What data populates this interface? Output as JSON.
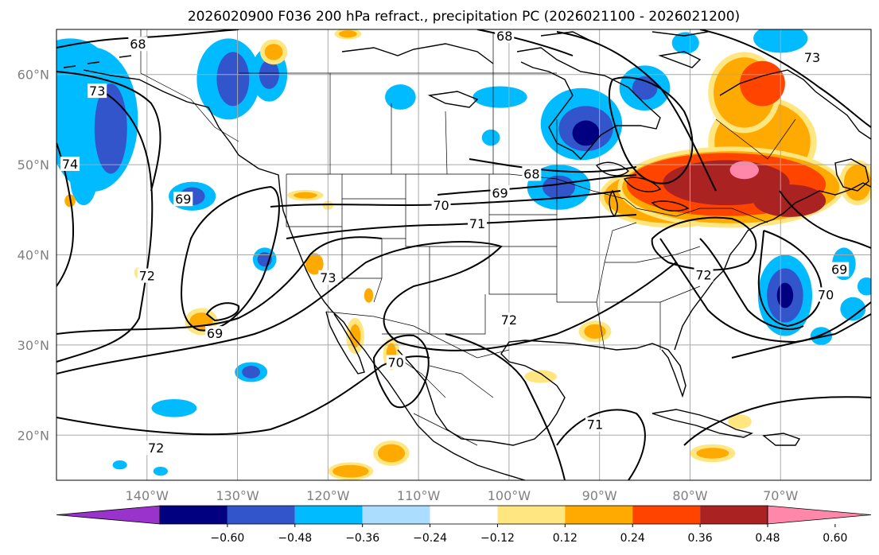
{
  "chart_data": {
    "type": "heatmap",
    "title": "2026020900 F036 200 hPa refract., precipitation PC (2026021100 - 2026021200)",
    "lon_range": [
      -150,
      -60
    ],
    "lat_range": [
      15,
      65
    ],
    "grid": true,
    "lat_ticks": [
      {
        "value": 20,
        "label": "20°N"
      },
      {
        "value": 30,
        "label": "30°N"
      },
      {
        "value": 40,
        "label": "40°N"
      },
      {
        "value": 50,
        "label": "50°N"
      },
      {
        "value": 60,
        "label": "60°N"
      }
    ],
    "lon_ticks": [
      {
        "value": -140,
        "label": "140°W"
      },
      {
        "value": -130,
        "label": "130°W"
      },
      {
        "value": -120,
        "label": "120°W"
      },
      {
        "value": -110,
        "label": "110°W"
      },
      {
        "value": -100,
        "label": "100°W"
      },
      {
        "value": -90,
        "label": "90°W"
      },
      {
        "value": -80,
        "label": "80°W"
      },
      {
        "value": -70,
        "label": "70°W"
      }
    ],
    "colorbar": {
      "colors": [
        "#9933cc",
        "#000080",
        "#3355cc",
        "#00bbff",
        "#aaddff",
        "#ffffff",
        "#ffe680",
        "#ffaa00",
        "#ff4400",
        "#aa2222",
        "#ff88aa"
      ],
      "ticks": [
        "−0.60",
        "−0.48",
        "−0.36",
        "−0.24",
        "−0.12",
        "0.12",
        "0.24",
        "0.36",
        "0.48",
        "0.60"
      ],
      "extend": "both"
    },
    "contour_labels": [
      {
        "lon": -141,
        "lat": 63.4,
        "text": "68"
      },
      {
        "lon": -100.5,
        "lat": 64.3,
        "text": "68"
      },
      {
        "lon": -66.5,
        "lat": 61.9,
        "text": "73"
      },
      {
        "lon": -145.5,
        "lat": 58.2,
        "text": "73"
      },
      {
        "lon": -148.5,
        "lat": 50.1,
        "text": "74"
      },
      {
        "lon": -136,
        "lat": 46.2,
        "text": "69"
      },
      {
        "lon": -97.5,
        "lat": 49.0,
        "text": "68"
      },
      {
        "lon": -101,
        "lat": 46.9,
        "text": "69"
      },
      {
        "lon": -107.5,
        "lat": 45.5,
        "text": "70"
      },
      {
        "lon": -103.5,
        "lat": 43.5,
        "text": "71"
      },
      {
        "lon": -140,
        "lat": 37.7,
        "text": "72"
      },
      {
        "lon": -120,
        "lat": 37.5,
        "text": "73"
      },
      {
        "lon": -100,
        "lat": 32.8,
        "text": "72"
      },
      {
        "lon": -78.5,
        "lat": 37.8,
        "text": "72"
      },
      {
        "lon": -65,
        "lat": 35.6,
        "text": "70"
      },
      {
        "lon": -63.5,
        "lat": 38.4,
        "text": "69"
      },
      {
        "lon": -132.5,
        "lat": 31.3,
        "text": "69"
      },
      {
        "lon": -112.5,
        "lat": 28.1,
        "text": "70"
      },
      {
        "lon": -139,
        "lat": 18.6,
        "text": "72"
      },
      {
        "lon": -90.5,
        "lat": 21.2,
        "text": "71"
      }
    ],
    "precip_areas": [
      {
        "lon": -146,
        "lat": 55,
        "rx": 5,
        "ry": 8,
        "color": "#00bbff"
      },
      {
        "lon": -144,
        "lat": 54,
        "rx": 1.8,
        "ry": 5,
        "color": "#3355cc"
      },
      {
        "lon": -148.5,
        "lat": 61,
        "rx": 4,
        "ry": 3,
        "color": "#00bbff"
      },
      {
        "lon": -147,
        "lat": 48.5,
        "rx": 1.5,
        "ry": 3,
        "color": "#00bbff"
      },
      {
        "lon": -131,
        "lat": 59.5,
        "rx": 3.5,
        "ry": 4.5,
        "color": "#00bbff"
      },
      {
        "lon": -130.5,
        "lat": 59.5,
        "rx": 1.8,
        "ry": 3,
        "color": "#3355cc"
      },
      {
        "lon": -126.5,
        "lat": 60,
        "rx": 2,
        "ry": 3,
        "color": "#00bbff"
      },
      {
        "lon": -126.5,
        "lat": 60,
        "rx": 1.1,
        "ry": 1.6,
        "color": "#3355cc"
      },
      {
        "lon": -135,
        "lat": 46.5,
        "rx": 2.6,
        "ry": 1.6,
        "color": "#00bbff"
      },
      {
        "lon": -135,
        "lat": 46.5,
        "rx": 1.4,
        "ry": 1,
        "color": "#3355cc"
      },
      {
        "lon": -127,
        "lat": 39.5,
        "rx": 1.3,
        "ry": 1.3,
        "color": "#00bbff"
      },
      {
        "lon": -127,
        "lat": 39.5,
        "rx": 0.8,
        "ry": 0.8,
        "color": "#3355cc"
      },
      {
        "lon": -128.5,
        "lat": 27,
        "rx": 1.8,
        "ry": 1.1,
        "color": "#00bbff"
      },
      {
        "lon": -128.5,
        "lat": 27,
        "rx": 1,
        "ry": 0.7,
        "color": "#3355cc"
      },
      {
        "lon": -137,
        "lat": 23,
        "rx": 2.5,
        "ry": 1,
        "color": "#00bbff"
      },
      {
        "lon": -143,
        "lat": 16.7,
        "rx": 0.8,
        "ry": 0.5,
        "color": "#00bbff"
      },
      {
        "lon": -138.5,
        "lat": 16,
        "rx": 0.8,
        "ry": 0.5,
        "color": "#00bbff"
      },
      {
        "lon": -92,
        "lat": 54.5,
        "rx": 4.5,
        "ry": 4,
        "color": "#00bbff"
      },
      {
        "lon": -91.5,
        "lat": 54,
        "rx": 3,
        "ry": 2.5,
        "color": "#3355cc"
      },
      {
        "lon": -91.5,
        "lat": 53.5,
        "rx": 1.5,
        "ry": 1.4,
        "color": "#000080"
      },
      {
        "lon": -85,
        "lat": 58.5,
        "rx": 2.8,
        "ry": 2.5,
        "color": "#00bbff"
      },
      {
        "lon": -85,
        "lat": 58.5,
        "rx": 1.4,
        "ry": 1.3,
        "color": "#3355cc"
      },
      {
        "lon": -94.5,
        "lat": 47.5,
        "rx": 3.5,
        "ry": 2.5,
        "color": "#00bbff"
      },
      {
        "lon": -94.5,
        "lat": 47.5,
        "rx": 1.8,
        "ry": 1.3,
        "color": "#3355cc"
      },
      {
        "lon": -101,
        "lat": 57.5,
        "rx": 3,
        "ry": 1.2,
        "color": "#00bbff"
      },
      {
        "lon": -112,
        "lat": 57.5,
        "rx": 1.7,
        "ry": 1.4,
        "color": "#00bbff"
      },
      {
        "lon": -102,
        "lat": 53,
        "rx": 1,
        "ry": 0.9,
        "color": "#00bbff"
      },
      {
        "lon": -78,
        "lat": 47.5,
        "rx": 2,
        "ry": 1.8,
        "color": "#00bbff"
      },
      {
        "lon": -69.5,
        "lat": 35.5,
        "rx": 3,
        "ry": 4.5,
        "color": "#00bbff"
      },
      {
        "lon": -69.5,
        "lat": 35.5,
        "rx": 2,
        "ry": 3,
        "color": "#3355cc"
      },
      {
        "lon": -69.5,
        "lat": 35.5,
        "rx": 0.9,
        "ry": 1.4,
        "color": "#000080"
      },
      {
        "lon": -63,
        "lat": 39,
        "rx": 1.3,
        "ry": 1.8,
        "color": "#00bbff"
      },
      {
        "lon": -62,
        "lat": 34,
        "rx": 1.4,
        "ry": 1.3,
        "color": "#00bbff"
      },
      {
        "lon": -65.5,
        "lat": 31,
        "rx": 1.2,
        "ry": 1,
        "color": "#00bbff"
      },
      {
        "lon": -60.5,
        "lat": 36.5,
        "rx": 1,
        "ry": 1,
        "color": "#00bbff"
      },
      {
        "lon": -70,
        "lat": 64,
        "rx": 3,
        "ry": 1.6,
        "color": "#00bbff"
      },
      {
        "lon": -80.5,
        "lat": 63.5,
        "rx": 1.5,
        "ry": 1.2,
        "color": "#00bbff"
      },
      {
        "lon": -72,
        "lat": 52.5,
        "rx": 6,
        "ry": 5,
        "color": "#ffe680"
      },
      {
        "lon": -72,
        "lat": 52.5,
        "rx": 5.3,
        "ry": 4.5,
        "color": "#ffaa00"
      },
      {
        "lon": -74,
        "lat": 58,
        "rx": 4,
        "ry": 4.5,
        "color": "#ffe680"
      },
      {
        "lon": -74,
        "lat": 58,
        "rx": 3.4,
        "ry": 3.9,
        "color": "#ffaa00"
      },
      {
        "lon": -72,
        "lat": 59,
        "rx": 2.5,
        "ry": 2.5,
        "color": "#ff4400"
      },
      {
        "lon": -82,
        "lat": 46.5,
        "rx": 8,
        "ry": 3.5,
        "color": "#ffe680"
      },
      {
        "lon": -82,
        "lat": 46.5,
        "rx": 7.5,
        "ry": 3,
        "color": "#ffaa00"
      },
      {
        "lon": -75.5,
        "lat": 47.5,
        "rx": 12.5,
        "ry": 4.5,
        "color": "#ffe680"
      },
      {
        "lon": -75.5,
        "lat": 47.5,
        "rx": 12,
        "ry": 4,
        "color": "#ffaa00"
      },
      {
        "lon": -76,
        "lat": 47.8,
        "rx": 11,
        "ry": 3.5,
        "color": "#ff4400"
      },
      {
        "lon": -76,
        "lat": 48,
        "rx": 7,
        "ry": 2.5,
        "color": "#aa2222"
      },
      {
        "lon": -69,
        "lat": 46,
        "rx": 4,
        "ry": 1.8,
        "color": "#aa2222"
      },
      {
        "lon": -74,
        "lat": 49.4,
        "rx": 1.6,
        "ry": 1,
        "color": "#ff88aa"
      },
      {
        "lon": -61.5,
        "lat": 48,
        "rx": 2,
        "ry": 2.5,
        "color": "#ffe680"
      },
      {
        "lon": -61.5,
        "lat": 48,
        "rx": 1.5,
        "ry": 2,
        "color": "#ffaa00"
      },
      {
        "lon": -122.5,
        "lat": 46.6,
        "rx": 2,
        "ry": 0.6,
        "color": "#ffe680"
      },
      {
        "lon": -122.5,
        "lat": 46.6,
        "rx": 1.3,
        "ry": 0.35,
        "color": "#ffaa00"
      },
      {
        "lon": -134,
        "lat": 32.6,
        "rx": 1.8,
        "ry": 1.5,
        "color": "#ffe680"
      },
      {
        "lon": -134,
        "lat": 32.6,
        "rx": 1.3,
        "ry": 1,
        "color": "#ffaa00"
      },
      {
        "lon": -113,
        "lat": 29,
        "rx": 0.9,
        "ry": 1.8,
        "color": "#ffe680"
      },
      {
        "lon": -113,
        "lat": 29,
        "rx": 0.55,
        "ry": 1.2,
        "color": "#ffaa00"
      },
      {
        "lon": -117,
        "lat": 31,
        "rx": 1,
        "ry": 2,
        "color": "#ffe680"
      },
      {
        "lon": -117,
        "lat": 31,
        "rx": 0.6,
        "ry": 1.3,
        "color": "#ffaa00"
      },
      {
        "lon": -121.5,
        "lat": 39,
        "rx": 1,
        "ry": 1.2,
        "color": "#ffaa00"
      },
      {
        "lon": -115.5,
        "lat": 35.5,
        "rx": 0.5,
        "ry": 0.8,
        "color": "#ffaa00"
      },
      {
        "lon": -113,
        "lat": 18,
        "rx": 2,
        "ry": 1.4,
        "color": "#ffe680"
      },
      {
        "lon": -113,
        "lat": 18,
        "rx": 1.5,
        "ry": 1,
        "color": "#ffaa00"
      },
      {
        "lon": -117.5,
        "lat": 16,
        "rx": 2.5,
        "ry": 1,
        "color": "#ffe680"
      },
      {
        "lon": -117.5,
        "lat": 16,
        "rx": 2,
        "ry": 0.7,
        "color": "#ffaa00"
      },
      {
        "lon": -90.5,
        "lat": 31.5,
        "rx": 1.8,
        "ry": 1.2,
        "color": "#ffe680"
      },
      {
        "lon": -90.5,
        "lat": 31.5,
        "rx": 1.2,
        "ry": 0.8,
        "color": "#ffaa00"
      },
      {
        "lon": -96.5,
        "lat": 26.5,
        "rx": 1.8,
        "ry": 0.7,
        "color": "#ffe680"
      },
      {
        "lon": -77.5,
        "lat": 18,
        "rx": 2.5,
        "ry": 1,
        "color": "#ffe680"
      },
      {
        "lon": -77.5,
        "lat": 18,
        "rx": 1.8,
        "ry": 0.6,
        "color": "#ffaa00"
      },
      {
        "lon": -74.5,
        "lat": 21.5,
        "rx": 1.3,
        "ry": 0.8,
        "color": "#ffe680"
      },
      {
        "lon": -120,
        "lat": 45.5,
        "rx": 0.6,
        "ry": 0.5,
        "color": "#ffe680"
      },
      {
        "lon": -126,
        "lat": 62.5,
        "rx": 1.5,
        "ry": 1.4,
        "color": "#ffe680"
      },
      {
        "lon": -126,
        "lat": 62.5,
        "rx": 1,
        "ry": 0.9,
        "color": "#ffaa00"
      },
      {
        "lon": -117.8,
        "lat": 64.5,
        "rx": 1.5,
        "ry": 0.6,
        "color": "#ffe680"
      },
      {
        "lon": -117.8,
        "lat": 64.5,
        "rx": 1,
        "ry": 0.4,
        "color": "#ffaa00"
      },
      {
        "lon": -148.5,
        "lat": 46,
        "rx": 0.6,
        "ry": 0.7,
        "color": "#ffaa00"
      },
      {
        "lon": -141,
        "lat": 38,
        "rx": 0.4,
        "ry": 0.6,
        "color": "#ffe680"
      }
    ]
  }
}
